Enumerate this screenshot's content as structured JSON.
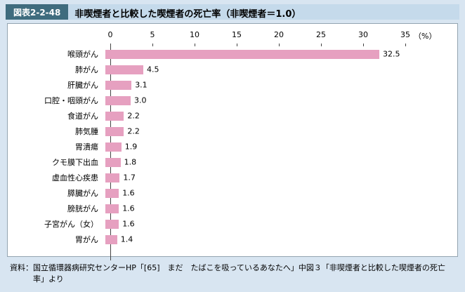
{
  "header": {
    "label": "図表2-2-48",
    "title": "非喫煙者と比較した喫煙者の死亡率（非喫煙者＝1.0）"
  },
  "chart_data": {
    "type": "bar",
    "orientation": "horizontal",
    "title": "非喫煙者と比較した喫煙者の死亡率（非喫煙者＝1.0）",
    "categories": [
      "喉頭がん",
      "肺がん",
      "肝臓がん",
      "口腔・咽頭がん",
      "食道がん",
      "肺気腫",
      "胃潰瘍",
      "クモ膜下出血",
      "虚血性心疾患",
      "膵臓がん",
      "膀胱がん",
      "子宮がん（女）",
      "胃がん"
    ],
    "values": [
      32.5,
      4.5,
      3.1,
      3.0,
      2.2,
      2.2,
      1.9,
      1.8,
      1.7,
      1.6,
      1.6,
      1.6,
      1.4
    ],
    "value_labels": [
      "32.5",
      "4.5",
      "3.1",
      "3.0",
      "2.2",
      "2.2",
      "1.9",
      "1.8",
      "1.7",
      "1.6",
      "1.6",
      "1.6",
      "1.4"
    ],
    "xlim": [
      0,
      35
    ],
    "xticks": [
      0,
      5,
      10,
      15,
      20,
      25,
      30,
      35
    ],
    "axis_unit": "（%）",
    "bar_color": "#e6a0c0",
    "grid": false,
    "legend": false
  },
  "footer": {
    "source": "資料：国立循環器病研究センターHP「[65]　まだ　たばこを吸っているあなたへ」中図３「非喫煙者と比較した喫煙者の死亡率」より"
  }
}
